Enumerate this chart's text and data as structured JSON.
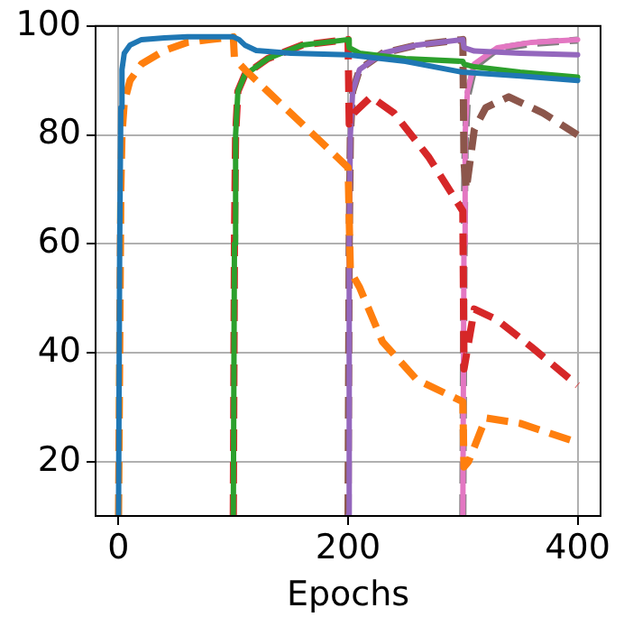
{
  "chart_data": {
    "type": "line",
    "xlabel": "Epochs",
    "xlim": [
      -20,
      420
    ],
    "xticks": [
      0,
      200,
      400
    ],
    "ylim": [
      10,
      100
    ],
    "yticks": [
      20,
      40,
      60,
      80,
      100
    ],
    "grid": true,
    "marker": "none",
    "series": [
      {
        "color": "#1f77b4",
        "line_style": "solid",
        "x": [
          0,
          1,
          2,
          3,
          5,
          10,
          20,
          40,
          60,
          80,
          100,
          105,
          110,
          120,
          150,
          200,
          250,
          300,
          350,
          400
        ],
        "values": [
          10,
          60,
          85,
          92,
          95,
          96.5,
          97.5,
          97.8,
          98,
          98,
          98,
          97.5,
          96.5,
          95.5,
          95,
          94.7,
          93.5,
          91.5,
          90.8,
          90
        ]
      },
      {
        "color": "#ff7f0e",
        "line_style": "dashed",
        "x": [
          0,
          1,
          2,
          3,
          5,
          10,
          20,
          40,
          60,
          80,
          100,
          101,
          110,
          130,
          160,
          190,
          200,
          202,
          210,
          230,
          260,
          300,
          301,
          305,
          320,
          350,
          400
        ],
        "values": [
          10,
          40,
          70,
          80,
          86,
          90,
          93,
          95.5,
          97,
          97.5,
          98,
          94,
          92,
          88,
          82,
          76,
          74,
          55,
          52,
          42,
          35,
          31,
          19,
          20,
          28,
          27,
          23.5
        ]
      },
      {
        "color": "#2ca02c",
        "line_style": "solid",
        "x": [
          100,
          101,
          102,
          104,
          110,
          130,
          160,
          200,
          201,
          210,
          250,
          300,
          301,
          310,
          350,
          400
        ],
        "values": [
          10,
          60,
          80,
          88,
          91,
          94,
          96.5,
          97.5,
          96,
          95,
          94,
          93.5,
          93,
          92.5,
          91.5,
          90.6
        ]
      },
      {
        "color": "#d62728",
        "line_style": "dashed",
        "x": [
          100,
          101,
          102,
          104,
          110,
          130,
          160,
          200,
          201,
          205,
          220,
          240,
          270,
          300,
          301,
          310,
          330,
          360,
          400
        ],
        "values": [
          10,
          60,
          80,
          88,
          91,
          94,
          96.5,
          97.5,
          82,
          84,
          87,
          84,
          76,
          66,
          37,
          48,
          46,
          41,
          34
        ]
      },
      {
        "color": "#9467bd",
        "line_style": "solid",
        "x": [
          200,
          201,
          202,
          204,
          210,
          230,
          260,
          300,
          301,
          310,
          350,
          400
        ],
        "values": [
          10,
          60,
          80,
          88,
          92,
          95,
          96.5,
          97.5,
          96,
          95.4,
          95,
          94.7
        ]
      },
      {
        "color": "#8c564b",
        "line_style": "dashed",
        "x": [
          200,
          201,
          202,
          204,
          210,
          230,
          260,
          300,
          301,
          303,
          310,
          320,
          340,
          370,
          400
        ],
        "values": [
          10,
          60,
          80,
          88,
          92,
          95,
          96.5,
          97.5,
          75,
          70,
          81,
          85,
          87,
          84,
          80
        ]
      },
      {
        "color": "#e377c2",
        "line_style": "solid",
        "x": [
          300,
          301,
          302,
          304,
          310,
          330,
          360,
          400
        ],
        "values": [
          10,
          60,
          80,
          88,
          93,
          96,
          97,
          97.5
        ]
      },
      {
        "color": "#7f7f7f",
        "line_style": "dashed",
        "x": [
          300,
          301,
          302,
          304,
          310,
          330,
          360,
          400
        ],
        "values": [
          10,
          58,
          78,
          87,
          92.5,
          95.8,
          96.8,
          97.4
        ]
      }
    ]
  }
}
